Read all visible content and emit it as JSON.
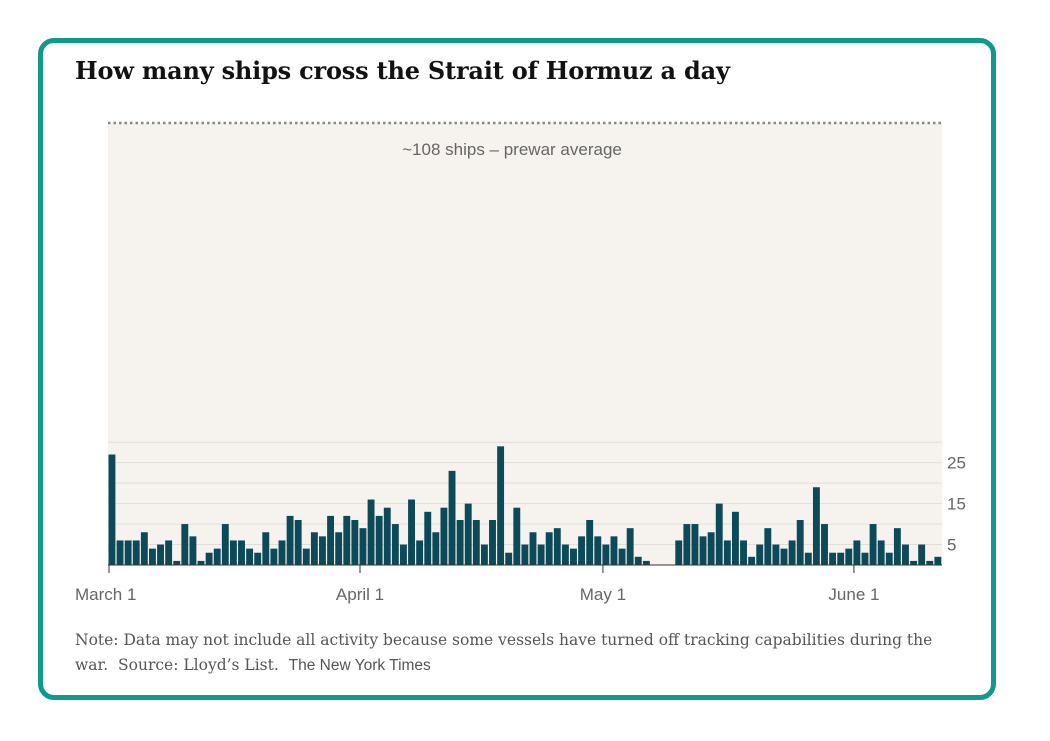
{
  "title": "How many ships cross the Strait of Hormuz a day",
  "note": {
    "text": "Note: Data may not include all activity because some vessels have turned off tracking capabilities during the war.",
    "source": "Source: Lloyd’s List.",
    "credit": "The New York Times"
  },
  "colors": {
    "frame": "#0f9a8d",
    "bar": "#0c4a5a",
    "shade": "#f6f3ef"
  },
  "chart_data": {
    "type": "bar",
    "title": "How many ships cross the Strait of Hormuz a day",
    "xlabel": "",
    "ylabel": "",
    "ylim": [
      0,
      108
    ],
    "yticks": [
      5,
      15,
      25
    ],
    "xticks": [
      {
        "label": "March 1",
        "day": 0
      },
      {
        "label": "April 1",
        "day": 31
      },
      {
        "label": "May 1",
        "day": 61
      },
      {
        "label": "June 1",
        "day": 92
      }
    ],
    "annotation": {
      "label": "~108 ships – prewar average",
      "value": 108
    },
    "start_date": "March 1",
    "values": [
      27,
      6,
      6,
      6,
      8,
      4,
      5,
      6,
      1,
      10,
      7,
      1,
      3,
      4,
      10,
      6,
      6,
      4,
      3,
      8,
      4,
      6,
      12,
      11,
      4,
      8,
      7,
      12,
      8,
      12,
      11,
      9,
      16,
      12,
      14,
      10,
      5,
      16,
      6,
      13,
      8,
      14,
      23,
      11,
      15,
      11,
      5,
      11,
      29,
      3,
      14,
      5,
      8,
      5,
      8,
      9,
      5,
      4,
      7,
      11,
      7,
      5,
      7,
      4,
      9,
      2,
      1,
      0,
      0,
      0,
      6,
      10,
      10,
      7,
      8,
      15,
      6,
      13,
      6,
      2,
      5,
      9,
      5,
      4,
      6,
      11,
      3,
      19,
      10,
      3,
      3,
      4,
      6,
      3,
      10,
      6,
      3,
      9,
      5,
      1,
      5,
      1,
      2
    ]
  }
}
